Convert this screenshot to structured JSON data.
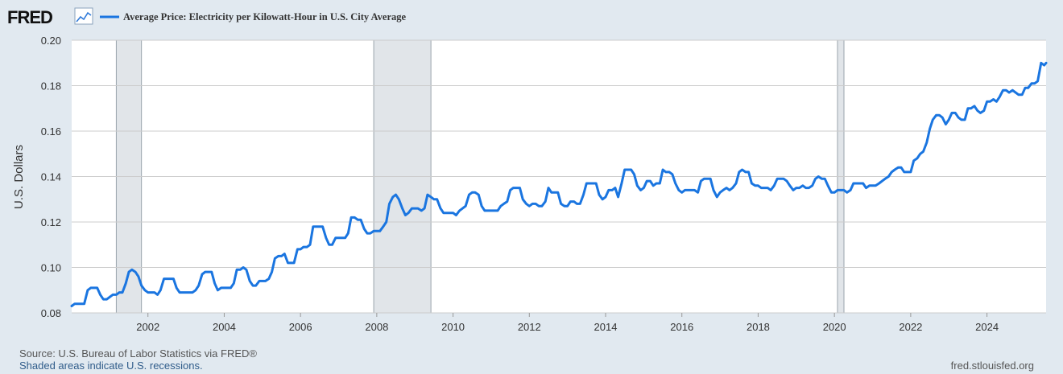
{
  "brand": {
    "logo_text": "FRED",
    "logo_icon": "line-chart-icon"
  },
  "footer": {
    "source": "Source: U.S. Bureau of Labor Statistics via FRED®",
    "recession_note": "Shaded areas indicate U.S. recessions.",
    "site": "fred.stlouisfed.org"
  },
  "colors": {
    "line": "#1a75e0",
    "background": "#e1e9f0",
    "plot_background": "#ffffff",
    "recession": "#e1e5e9",
    "grid": "#cccccc"
  },
  "chart_data": {
    "type": "line",
    "title": "",
    "xlabel": "",
    "ylabel": "U.S. Dollars",
    "xlim": [
      2000.0,
      2025.55
    ],
    "ylim": [
      0.08,
      0.2
    ],
    "x_ticks": [
      "2002",
      "2004",
      "2006",
      "2008",
      "2010",
      "2012",
      "2014",
      "2016",
      "2018",
      "2020",
      "2022",
      "2024"
    ],
    "y_ticks": [
      "0.08",
      "0.10",
      "0.12",
      "0.14",
      "0.16",
      "0.18",
      "0.20"
    ],
    "grid": true,
    "legend_position": "top-left",
    "recessions": [
      {
        "start": 2001.17,
        "end": 2001.83
      },
      {
        "start": 2007.92,
        "end": 2009.42
      },
      {
        "start": 2020.08,
        "end": 2020.25
      }
    ],
    "series": [
      {
        "name": "Average Price: Electricity per Kilowatt-Hour in U.S. City Average",
        "x": [
          2000.0,
          2000.08,
          2000.17,
          2000.25,
          2000.33,
          2000.42,
          2000.5,
          2000.58,
          2000.67,
          2000.75,
          2000.83,
          2000.92,
          2001.0,
          2001.08,
          2001.17,
          2001.25,
          2001.33,
          2001.42,
          2001.5,
          2001.58,
          2001.67,
          2001.75,
          2001.83,
          2001.92,
          2002.0,
          2002.08,
          2002.17,
          2002.25,
          2002.33,
          2002.42,
          2002.5,
          2002.58,
          2002.67,
          2002.75,
          2002.83,
          2002.92,
          2003.0,
          2003.08,
          2003.17,
          2003.25,
          2003.33,
          2003.42,
          2003.5,
          2003.58,
          2003.67,
          2003.75,
          2003.83,
          2003.92,
          2004.0,
          2004.08,
          2004.17,
          2004.25,
          2004.33,
          2004.42,
          2004.5,
          2004.58,
          2004.67,
          2004.75,
          2004.83,
          2004.92,
          2005.0,
          2005.08,
          2005.17,
          2005.25,
          2005.33,
          2005.42,
          2005.5,
          2005.58,
          2005.67,
          2005.75,
          2005.83,
          2005.92,
          2006.0,
          2006.08,
          2006.17,
          2006.25,
          2006.33,
          2006.42,
          2006.5,
          2006.58,
          2006.67,
          2006.75,
          2006.83,
          2006.92,
          2007.0,
          2007.08,
          2007.17,
          2007.25,
          2007.33,
          2007.42,
          2007.5,
          2007.58,
          2007.67,
          2007.75,
          2007.83,
          2007.92,
          2008.0,
          2008.08,
          2008.17,
          2008.25,
          2008.33,
          2008.42,
          2008.5,
          2008.58,
          2008.67,
          2008.75,
          2008.83,
          2008.92,
          2009.0,
          2009.08,
          2009.17,
          2009.25,
          2009.33,
          2009.42,
          2009.5,
          2009.58,
          2009.67,
          2009.75,
          2009.83,
          2009.92,
          2010.0,
          2010.08,
          2010.17,
          2010.25,
          2010.33,
          2010.42,
          2010.5,
          2010.58,
          2010.67,
          2010.75,
          2010.83,
          2010.92,
          2011.0,
          2011.08,
          2011.17,
          2011.25,
          2011.33,
          2011.42,
          2011.5,
          2011.58,
          2011.67,
          2011.75,
          2011.83,
          2011.92,
          2012.0,
          2012.08,
          2012.17,
          2012.25,
          2012.33,
          2012.42,
          2012.5,
          2012.58,
          2012.67,
          2012.75,
          2012.83,
          2012.92,
          2013.0,
          2013.08,
          2013.17,
          2013.25,
          2013.33,
          2013.42,
          2013.5,
          2013.58,
          2013.67,
          2013.75,
          2013.83,
          2013.92,
          2014.0,
          2014.08,
          2014.17,
          2014.25,
          2014.33,
          2014.42,
          2014.5,
          2014.58,
          2014.67,
          2014.75,
          2014.83,
          2014.92,
          2015.0,
          2015.08,
          2015.17,
          2015.25,
          2015.33,
          2015.42,
          2015.5,
          2015.58,
          2015.67,
          2015.75,
          2015.83,
          2015.92,
          2016.0,
          2016.08,
          2016.17,
          2016.25,
          2016.33,
          2016.42,
          2016.5,
          2016.58,
          2016.67,
          2016.75,
          2016.83,
          2016.92,
          2017.0,
          2017.08,
          2017.17,
          2017.25,
          2017.33,
          2017.42,
          2017.5,
          2017.58,
          2017.67,
          2017.75,
          2017.83,
          2017.92,
          2018.0,
          2018.08,
          2018.17,
          2018.25,
          2018.33,
          2018.42,
          2018.5,
          2018.58,
          2018.67,
          2018.75,
          2018.83,
          2018.92,
          2019.0,
          2019.08,
          2019.17,
          2019.25,
          2019.33,
          2019.42,
          2019.5,
          2019.58,
          2019.67,
          2019.75,
          2019.83,
          2019.92,
          2020.0,
          2020.08,
          2020.17,
          2020.25,
          2020.33,
          2020.42,
          2020.5,
          2020.58,
          2020.67,
          2020.75,
          2020.83,
          2020.92,
          2021.0,
          2021.08,
          2021.17,
          2021.25,
          2021.33,
          2021.42,
          2021.5,
          2021.58,
          2021.67,
          2021.75,
          2021.83,
          2021.92,
          2022.0,
          2022.08,
          2022.17,
          2022.25,
          2022.33,
          2022.42,
          2022.5,
          2022.58,
          2022.67,
          2022.75,
          2022.83,
          2022.92,
          2023.0,
          2023.08,
          2023.17,
          2023.25,
          2023.33,
          2023.42,
          2023.5,
          2023.58,
          2023.67,
          2023.75,
          2023.83,
          2023.92,
          2024.0,
          2024.08,
          2024.17,
          2024.25,
          2024.33,
          2024.42,
          2024.5,
          2024.58,
          2024.67,
          2024.75,
          2024.83,
          2024.92,
          2025.0,
          2025.08,
          2025.17,
          2025.25,
          2025.33,
          2025.42,
          2025.5,
          2025.55
        ],
        "values": [
          0.083,
          0.084,
          0.084,
          0.084,
          0.084,
          0.09,
          0.091,
          0.091,
          0.091,
          0.088,
          0.086,
          0.086,
          0.087,
          0.088,
          0.088,
          0.089,
          0.089,
          0.093,
          0.098,
          0.099,
          0.098,
          0.096,
          0.092,
          0.09,
          0.089,
          0.089,
          0.089,
          0.088,
          0.09,
          0.095,
          0.095,
          0.095,
          0.095,
          0.091,
          0.089,
          0.089,
          0.089,
          0.089,
          0.089,
          0.09,
          0.092,
          0.097,
          0.098,
          0.098,
          0.098,
          0.093,
          0.09,
          0.091,
          0.091,
          0.091,
          0.091,
          0.093,
          0.099,
          0.099,
          0.1,
          0.099,
          0.094,
          0.092,
          0.092,
          0.094,
          0.094,
          0.094,
          0.095,
          0.098,
          0.104,
          0.105,
          0.105,
          0.106,
          0.102,
          0.102,
          0.102,
          0.108,
          0.108,
          0.109,
          0.109,
          0.11,
          0.118,
          0.118,
          0.118,
          0.118,
          0.113,
          0.11,
          0.11,
          0.113,
          0.113,
          0.113,
          0.113,
          0.115,
          0.122,
          0.122,
          0.121,
          0.121,
          0.117,
          0.115,
          0.115,
          0.116,
          0.116,
          0.116,
          0.118,
          0.12,
          0.128,
          0.131,
          0.132,
          0.13,
          0.126,
          0.123,
          0.124,
          0.126,
          0.126,
          0.126,
          0.125,
          0.126,
          0.132,
          0.131,
          0.13,
          0.13,
          0.126,
          0.124,
          0.124,
          0.124,
          0.124,
          0.123,
          0.125,
          0.126,
          0.127,
          0.132,
          0.133,
          0.133,
          0.132,
          0.127,
          0.125,
          0.125,
          0.125,
          0.125,
          0.125,
          0.127,
          0.128,
          0.129,
          0.134,
          0.135,
          0.135,
          0.135,
          0.13,
          0.128,
          0.127,
          0.128,
          0.128,
          0.127,
          0.127,
          0.129,
          0.135,
          0.133,
          0.133,
          0.133,
          0.128,
          0.127,
          0.127,
          0.129,
          0.129,
          0.128,
          0.128,
          0.132,
          0.137,
          0.137,
          0.137,
          0.137,
          0.132,
          0.13,
          0.131,
          0.134,
          0.134,
          0.135,
          0.131,
          0.137,
          0.143,
          0.143,
          0.143,
          0.141,
          0.136,
          0.134,
          0.135,
          0.138,
          0.138,
          0.136,
          0.137,
          0.137,
          0.143,
          0.142,
          0.142,
          0.141,
          0.137,
          0.134,
          0.133,
          0.134,
          0.134,
          0.134,
          0.134,
          0.133,
          0.138,
          0.139,
          0.139,
          0.139,
          0.134,
          0.131,
          0.133,
          0.134,
          0.135,
          0.134,
          0.135,
          0.137,
          0.142,
          0.143,
          0.142,
          0.142,
          0.137,
          0.136,
          0.136,
          0.135,
          0.135,
          0.135,
          0.134,
          0.136,
          0.139,
          0.139,
          0.139,
          0.138,
          0.136,
          0.134,
          0.135,
          0.135,
          0.136,
          0.135,
          0.135,
          0.136,
          0.139,
          0.14,
          0.139,
          0.139,
          0.136,
          0.133,
          0.133,
          0.134,
          0.134,
          0.134,
          0.133,
          0.134,
          0.137,
          0.137,
          0.137,
          0.137,
          0.135,
          0.136,
          0.136,
          0.136,
          0.137,
          0.138,
          0.139,
          0.14,
          0.142,
          0.143,
          0.144,
          0.144,
          0.142,
          0.142,
          0.142,
          0.147,
          0.148,
          0.15,
          0.151,
          0.155,
          0.161,
          0.165,
          0.167,
          0.167,
          0.166,
          0.163,
          0.165,
          0.168,
          0.168,
          0.166,
          0.165,
          0.165,
          0.17,
          0.17,
          0.171,
          0.169,
          0.168,
          0.169,
          0.173,
          0.173,
          0.174,
          0.173,
          0.175,
          0.178,
          0.178,
          0.177,
          0.178,
          0.177,
          0.176,
          0.176,
          0.179,
          0.179,
          0.181,
          0.181,
          0.182,
          0.19,
          0.189,
          0.19
        ]
      }
    ]
  }
}
